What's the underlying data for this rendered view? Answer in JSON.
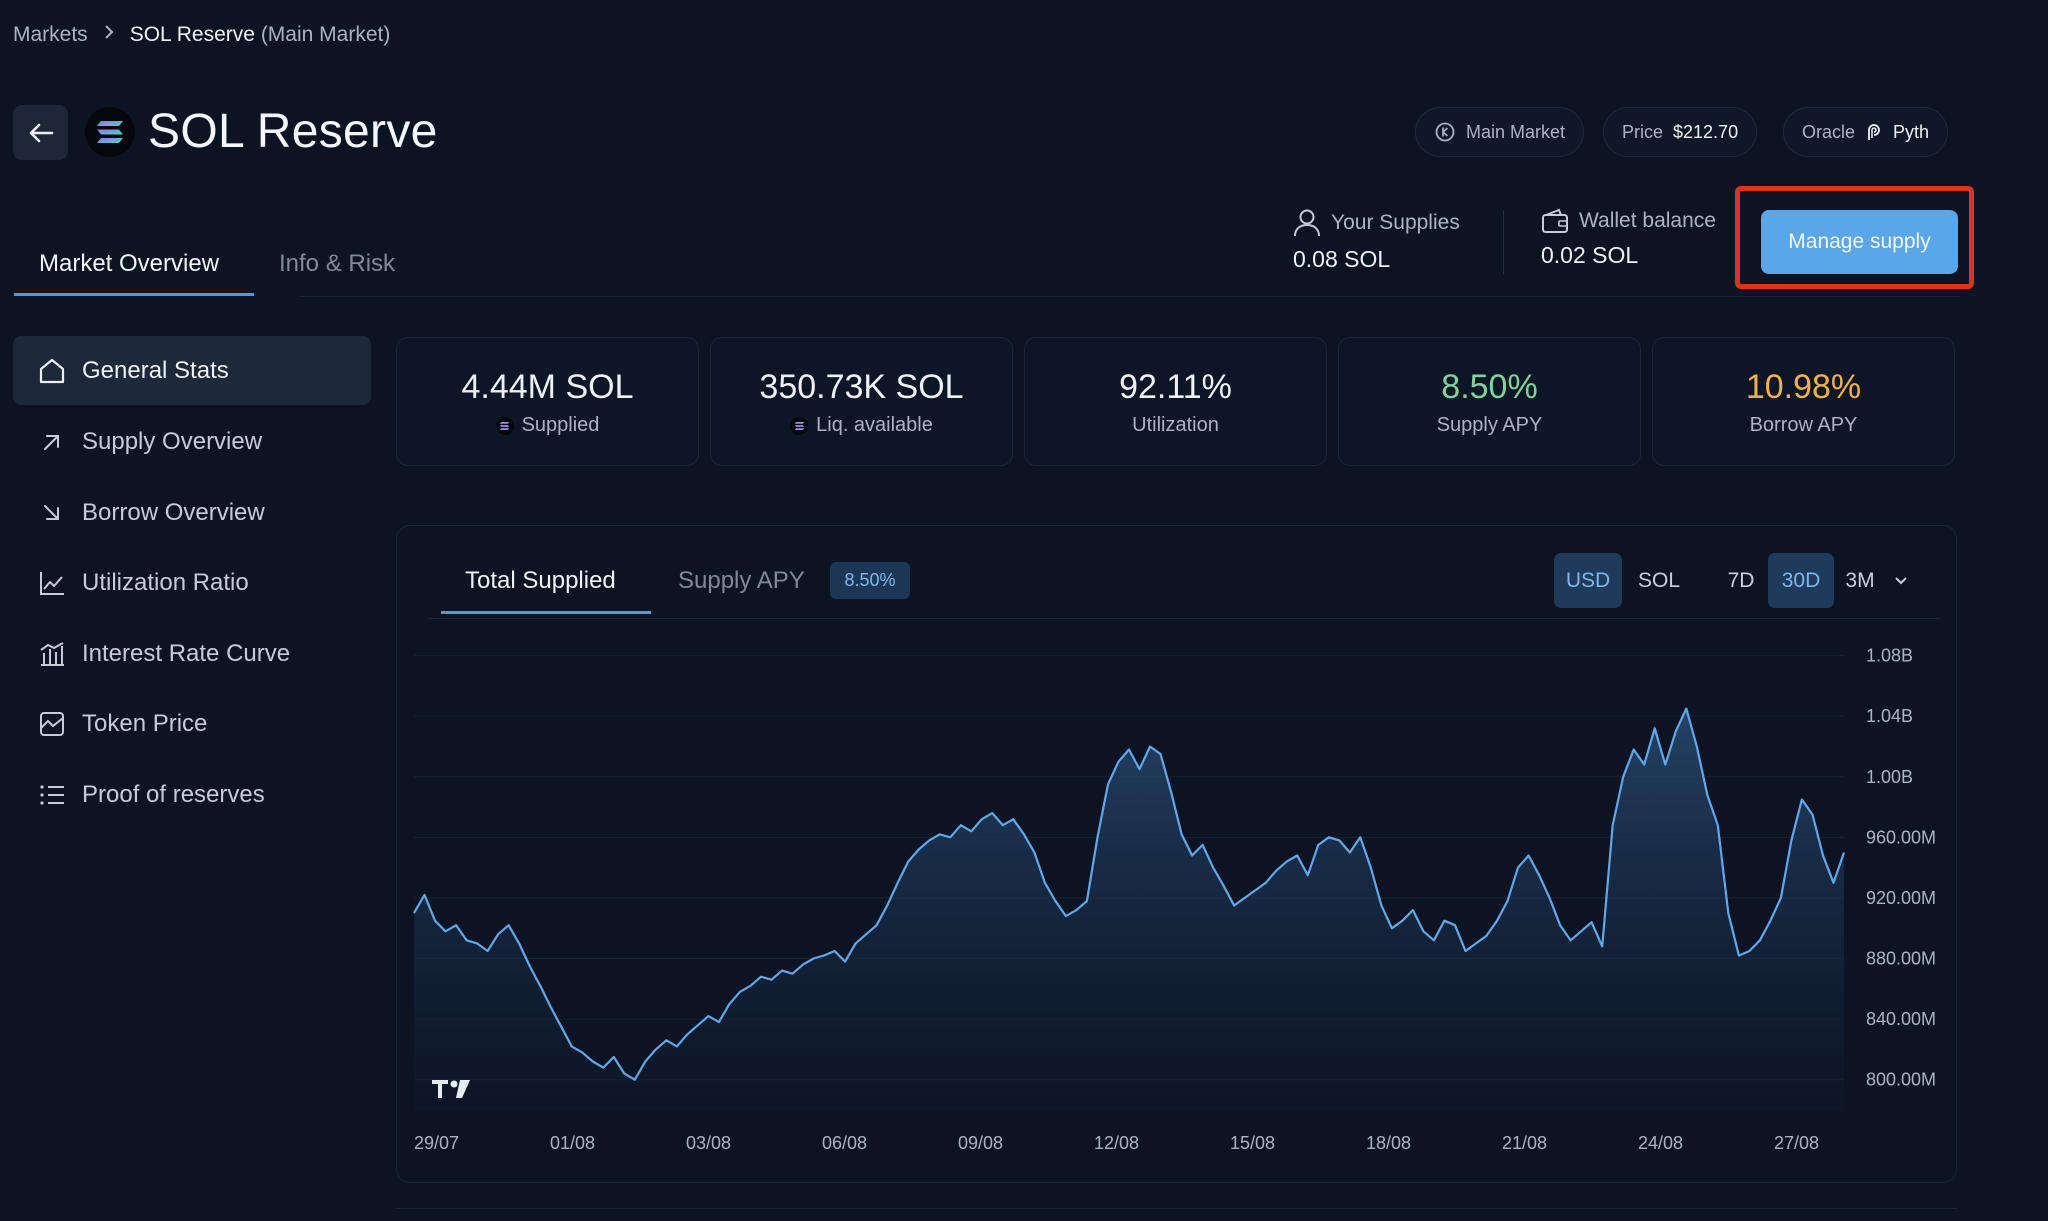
{
  "breadcrumb": {
    "root": "Markets",
    "current": "SOL Reserve",
    "current_suffix": "(Main Market)"
  },
  "header": {
    "title": "SOL Reserve",
    "market_pill": "Main Market",
    "price_label": "Price",
    "price_value": "$212.70",
    "oracle_label": "Oracle",
    "oracle_value": "Pyth"
  },
  "tabs": [
    {
      "label": "Market Overview",
      "active": true
    },
    {
      "label": "Info & Risk",
      "active": false
    }
  ],
  "user": {
    "supplies_label": "Your Supplies",
    "supplies_value": "0.08 SOL",
    "wallet_label": "Wallet balance",
    "wallet_value": "0.02 SOL"
  },
  "manage_button": "Manage supply",
  "sidebar": {
    "items": [
      {
        "label": "General Stats",
        "icon": "home-icon",
        "active": true
      },
      {
        "label": "Supply Overview",
        "icon": "arrow-up-right-icon",
        "active": false
      },
      {
        "label": "Borrow Overview",
        "icon": "arrow-down-right-icon",
        "active": false
      },
      {
        "label": "Utilization Ratio",
        "icon": "line-chart-icon",
        "active": false
      },
      {
        "label": "Interest Rate Curve",
        "icon": "rate-curve-icon",
        "active": false
      },
      {
        "label": "Token Price",
        "icon": "price-chart-icon",
        "active": false
      },
      {
        "label": "Proof of reserves",
        "icon": "list-icon",
        "active": false
      }
    ]
  },
  "stats": [
    {
      "value": "4.44M SOL",
      "label": "Supplied",
      "color": "#eef2f8",
      "icon": true
    },
    {
      "value": "350.73K SOL",
      "label": "Liq. available",
      "color": "#eef2f8",
      "icon": true
    },
    {
      "value": "92.11%",
      "label": "Utilization",
      "color": "#eef2f8",
      "icon": false
    },
    {
      "value": "8.50%",
      "label": "Supply APY",
      "color": "#7fd39a",
      "icon": false
    },
    {
      "value": "10.98%",
      "label": "Borrow APY",
      "color": "#f4b04a",
      "icon": false
    }
  ],
  "chart_panel": {
    "tab_total": "Total Supplied",
    "tab_apy": "Supply APY",
    "apy_badge": "8.50%",
    "currency_toggle": [
      {
        "label": "USD",
        "selected": true
      },
      {
        "label": "SOL",
        "selected": false
      }
    ],
    "range_toggle": [
      {
        "label": "7D",
        "selected": false
      },
      {
        "label": "30D",
        "selected": true
      },
      {
        "label": "3M",
        "selected": false
      }
    ]
  },
  "chart_data": {
    "type": "area",
    "x_ticks": [
      "29/07",
      "01/08",
      "03/08",
      "06/08",
      "09/08",
      "12/08",
      "15/08",
      "18/08",
      "21/08",
      "24/08",
      "27/08"
    ],
    "y_ticks": [
      "1.08B",
      "1.04B",
      "1.00B",
      "960.00M",
      "920.00M",
      "880.00M",
      "840.00M",
      "800.00M"
    ],
    "ylim": [
      780,
      1085
    ],
    "y_unit": "M USD",
    "series": [
      {
        "values": [
          910,
          922,
          905,
          898,
          902,
          892,
          890,
          885,
          896,
          902,
          890,
          875,
          862,
          848,
          835,
          822,
          818,
          812,
          808,
          815,
          804,
          800,
          812,
          820,
          826,
          822,
          830,
          836,
          842,
          838,
          850,
          858,
          862,
          868,
          866,
          872,
          870,
          876,
          880,
          882,
          885,
          878,
          890,
          896,
          902,
          915,
          930,
          944,
          952,
          958,
          962,
          960,
          968,
          964,
          972,
          976,
          968,
          972,
          962,
          950,
          930,
          918,
          908,
          912,
          918,
          960,
          995,
          1010,
          1018,
          1005,
          1020,
          1015,
          990,
          962,
          948,
          955,
          940,
          928,
          915,
          920,
          925,
          930,
          938,
          944,
          948,
          935,
          955,
          960,
          958,
          950,
          960,
          940,
          915,
          900,
          905,
          912,
          898,
          892,
          905,
          902,
          885,
          890,
          895,
          905,
          918,
          940,
          948,
          935,
          920,
          902,
          892,
          898,
          904,
          888,
          968,
          1000,
          1018,
          1008,
          1032,
          1008,
          1030,
          1045,
          1020,
          988,
          968,
          910,
          882,
          885,
          892,
          905,
          920,
          958,
          985,
          975,
          948,
          930,
          950
        ]
      }
    ]
  }
}
